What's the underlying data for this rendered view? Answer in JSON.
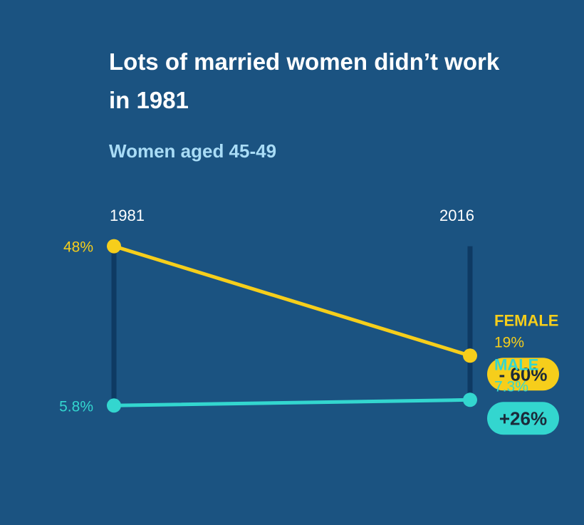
{
  "colors": {
    "background": "#1b5381",
    "axis": "#0e3a63",
    "female": "#f6ce1b",
    "male": "#33d6cf",
    "badge_text": "#1b2a3a",
    "year_label": "#ffffff",
    "subtitle": "#a9dcf6"
  },
  "chart_data": {
    "type": "line",
    "title": "Lots of married women didn’t work in 1981",
    "subtitle": "Women aged 45-49",
    "x": [
      "1981",
      "2016"
    ],
    "ylim": [
      0,
      50
    ],
    "series": [
      {
        "name": "FEMALE",
        "values": [
          48,
          19
        ],
        "value_labels": [
          "48%",
          "19%"
        ],
        "change_label": "- 60%",
        "color_key": "female"
      },
      {
        "name": "MALE",
        "values": [
          5.8,
          7.3
        ],
        "value_labels": [
          "5.8%",
          "7.3%"
        ],
        "change_label": "+26%",
        "color_key": "male"
      }
    ]
  }
}
